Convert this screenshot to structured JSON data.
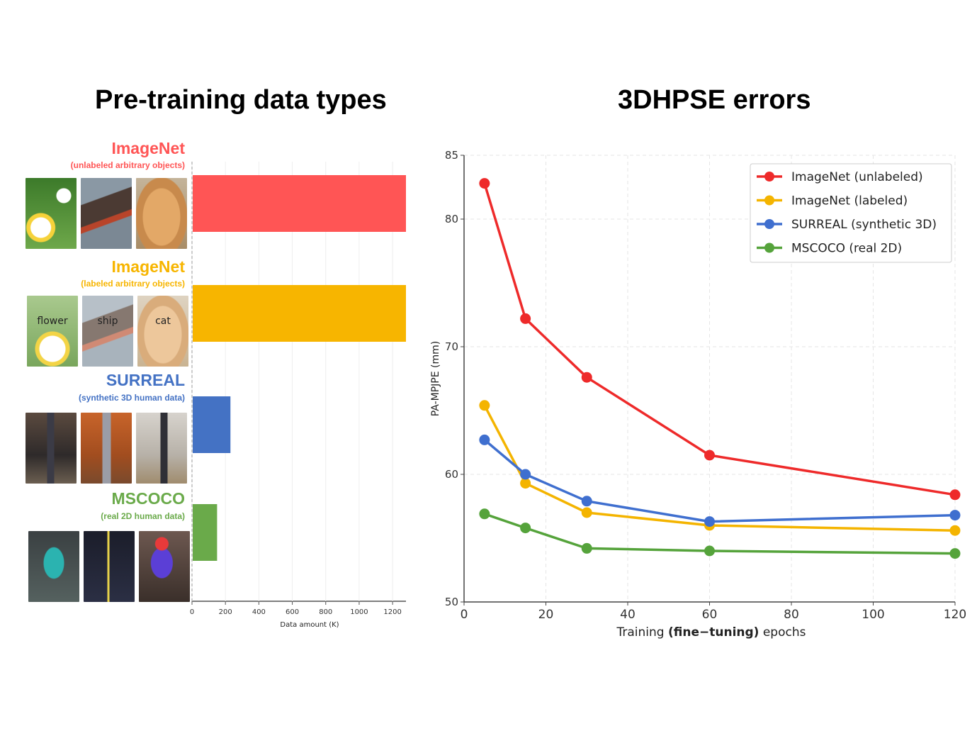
{
  "titles": {
    "left": "Pre-training data types",
    "right": "3DHPSE errors"
  },
  "datasets": [
    {
      "name": "ImageNet",
      "subtitle": "(unlabeled arbitrary objects)",
      "color": "#ff5555",
      "thumbs": [
        "flower",
        "ship",
        "cat"
      ],
      "thumb_captions": [
        "",
        "",
        ""
      ]
    },
    {
      "name": "ImageNet",
      "subtitle": "(labeled arbitrary objects)",
      "color": "#f7b500",
      "thumbs": [
        "flower",
        "ship",
        "cat"
      ],
      "thumb_captions": [
        "flower",
        "ship",
        "cat"
      ]
    },
    {
      "name": "SURREAL",
      "subtitle": "(synthetic 3D human data)",
      "color": "#4472c4",
      "thumbs": [
        "indoor-human",
        "kitchen-human",
        "room-human"
      ],
      "thumb_captions": [
        "",
        "",
        ""
      ]
    },
    {
      "name": "MSCOCO",
      "subtitle": "(real 2D human data)",
      "color": "#6aaa4a",
      "thumbs": [
        "pose-human",
        "skeleton-human",
        "segmented-human"
      ],
      "thumb_captions": [
        "",
        "",
        ""
      ]
    }
  ],
  "chart_data": [
    {
      "type": "bar",
      "orientation": "horizontal",
      "categories": [
        "ImageNet (unlabeled)",
        "ImageNet (labeled)",
        "SURREAL",
        "MSCOCO"
      ],
      "values": [
        1280,
        1280,
        230,
        150
      ],
      "colors": [
        "#ff5555",
        "#f7b500",
        "#4472c4",
        "#6aaa4a"
      ],
      "xlabel": "Data amount (K)",
      "xlim": [
        0,
        1280
      ],
      "xticks": [
        0,
        200,
        400,
        600,
        800,
        1000,
        1200
      ]
    },
    {
      "type": "line",
      "title": "3DHPSE errors",
      "xlabel_parts": [
        "Training ",
        "(fine−tuning)",
        " epochs"
      ],
      "ylabel": "PA-MPJPE (mm)",
      "xlim": [
        0,
        120
      ],
      "ylim": [
        50,
        85
      ],
      "xticks": [
        0,
        20,
        40,
        60,
        80,
        100,
        120
      ],
      "yticks": [
        50,
        60,
        70,
        80,
        85
      ],
      "grid": true,
      "legend_position": "top-right",
      "x": [
        5,
        15,
        30,
        60,
        120
      ],
      "series": [
        {
          "name": "ImageNet (unlabeled)",
          "color": "#ee2a2a",
          "values": [
            82.8,
            72.2,
            67.6,
            61.5,
            58.4
          ]
        },
        {
          "name": "ImageNet (labeled)",
          "color": "#f4b400",
          "values": [
            65.4,
            59.3,
            57.0,
            56.0,
            55.6
          ]
        },
        {
          "name": "SURREAL (synthetic 3D)",
          "color": "#3f6fcf",
          "values": [
            62.7,
            60.0,
            57.9,
            56.3,
            56.8
          ]
        },
        {
          "name": "MSCOCO (real 2D)",
          "color": "#55a33b",
          "values": [
            56.9,
            55.8,
            54.2,
            54.0,
            53.8
          ]
        }
      ]
    }
  ]
}
